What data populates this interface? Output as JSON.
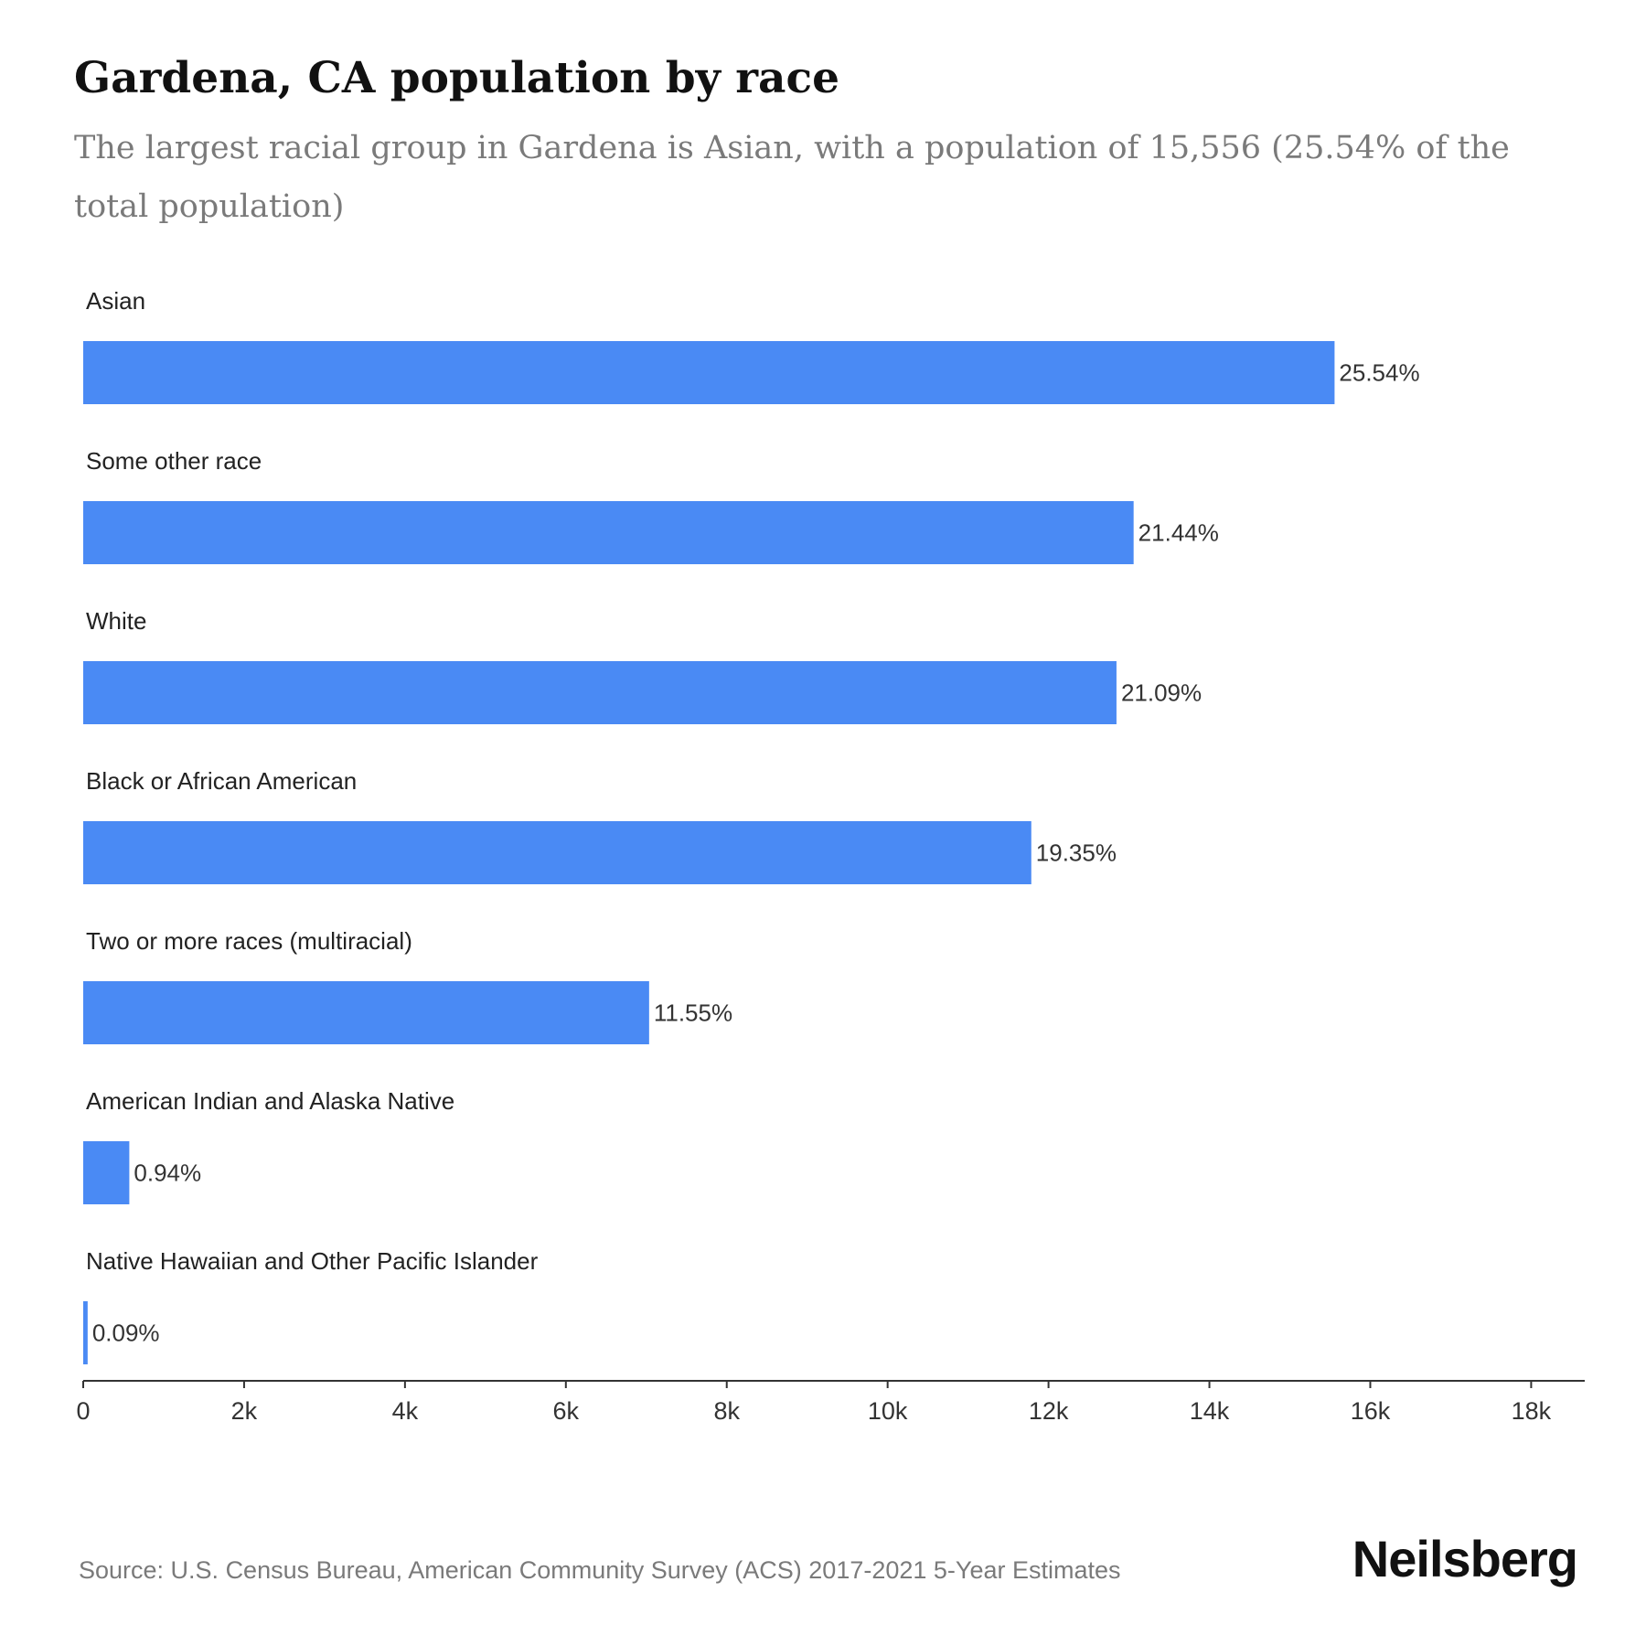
{
  "title": "Gardena, CA population by race",
  "subtitle": "The largest racial group in Gardena is Asian, with a population of 15,556 (25.54% of the total population)",
  "source": "Source: U.S. Census Bureau, American Community Survey (ACS) 2017-2021 5-Year Estimates",
  "brand": "Neilsberg",
  "colors": {
    "bar": "#4a8af4",
    "axis": "#333333",
    "label": "#222222"
  },
  "chart_data": {
    "type": "bar",
    "orientation": "horizontal",
    "categories": [
      "Asian",
      "Some other race",
      "White",
      "Black or African American",
      "Two or more races (multiracial)",
      "American Indian and Alaska Native",
      "Native Hawaiian and Other Pacific Islander"
    ],
    "values": [
      15556,
      13058,
      12845,
      11786,
      7035,
      573,
      55
    ],
    "data_labels": [
      "25.54%",
      "21.44%",
      "21.09%",
      "19.35%",
      "11.55%",
      "0.94%",
      "0.09%"
    ],
    "xlim": [
      0,
      18666
    ],
    "x_ticks": [
      0,
      2000,
      4000,
      6000,
      8000,
      10000,
      12000,
      14000,
      16000,
      18000
    ],
    "x_tick_labels": [
      "0",
      "2k",
      "4k",
      "6k",
      "8k",
      "10k",
      "12k",
      "14k",
      "16k",
      "18k"
    ],
    "grid": false,
    "legend": "none"
  }
}
